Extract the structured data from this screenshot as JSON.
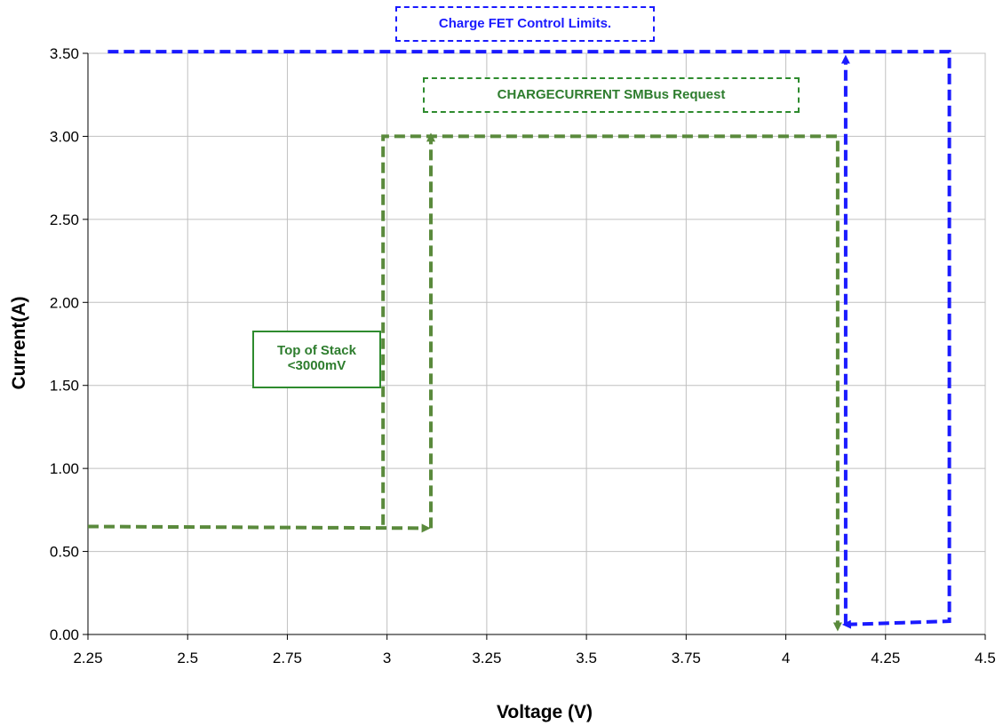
{
  "chart_data": {
    "type": "line",
    "xlabel": "Voltage (V)",
    "ylabel": "Current(A)",
    "xlim": [
      2.25,
      4.5
    ],
    "ylim": [
      0,
      3.5
    ],
    "x_ticks": [
      "2.25",
      "2.5",
      "2.75",
      "3",
      "3.25",
      "3.5",
      "3.75",
      "4",
      "4.25",
      "4.5"
    ],
    "x_tick_values": [
      2.25,
      2.5,
      2.75,
      3,
      3.25,
      3.5,
      3.75,
      4,
      4.25,
      4.5
    ],
    "y_ticks": [
      "0.00",
      "0.50",
      "1.00",
      "1.50",
      "2.00",
      "2.50",
      "3.00",
      "3.50"
    ],
    "y_tick_values": [
      0,
      0.5,
      1,
      1.5,
      2,
      2.5,
      3,
      3.5
    ],
    "grid": true,
    "series": [
      {
        "color": "#5a8a3c",
        "style": "dashed-arrows",
        "paths": [
          [
            [
              2.25,
              0.65
            ],
            [
              3.1,
              0.64
            ]
          ],
          [
            [
              3.11,
              0.64
            ],
            [
              3.11,
              3.0
            ]
          ],
          [
            [
              2.99,
              0.66
            ],
            [
              2.99,
              3.0
            ],
            [
              4.13,
              3.0
            ],
            [
              4.13,
              0.04
            ]
          ]
        ]
      },
      {
        "color": "#1a1aff",
        "style": "dashed-arrows",
        "paths": [
          [
            [
              2.3,
              3.51
            ],
            [
              4.41,
              3.51
            ],
            [
              4.41,
              0.08
            ],
            [
              4.15,
              0.06
            ]
          ],
          [
            [
              4.15,
              0.06
            ],
            [
              4.15,
              3.47
            ]
          ]
        ]
      }
    ],
    "annotations": [
      {
        "text": "Charge FET Control Limits.",
        "color": "#1a1aff"
      },
      {
        "text": "CHARGECURRENT   SMBus Request",
        "color": "#2e7d2e"
      },
      {
        "text": "Top of Stack\n<3000mV",
        "color": "#2e7d2e"
      }
    ]
  }
}
